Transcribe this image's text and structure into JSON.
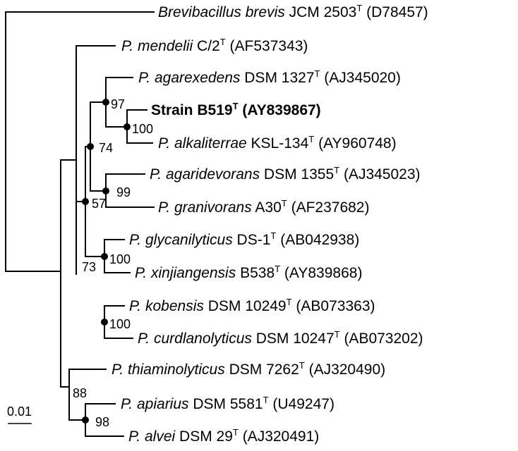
{
  "taxa": [
    {
      "id": "t1",
      "genus": "Brevibacillus",
      "species": "brevis",
      "strain": "JCM 2503",
      "type_mark": "T",
      "accession": "(D78457)",
      "bold": false
    },
    {
      "id": "t2",
      "genus": "P.",
      "species": "mendelii",
      "strain": "C/2",
      "type_mark": "T",
      "accession": "(AF537343)",
      "bold": false
    },
    {
      "id": "t3",
      "genus": "P.",
      "species": "agarexedens",
      "strain": "DSM 1327",
      "type_mark": "T",
      "accession": "(AJ345020)",
      "bold": false
    },
    {
      "id": "t4",
      "genus": "",
      "species": "",
      "strain": "Strain B519",
      "type_mark": "T",
      "accession": "(AY839867)",
      "bold": true
    },
    {
      "id": "t5",
      "genus": "P.",
      "species": "alkaliterrae",
      "strain": "KSL-134",
      "type_mark": "T",
      "accession": "(AY960748)",
      "bold": false
    },
    {
      "id": "t6",
      "genus": "P.",
      "species": "agaridevorans",
      "strain": "DSM 1355",
      "type_mark": "T",
      "accession": "(AJ345023)",
      "bold": false
    },
    {
      "id": "t7",
      "genus": "P.",
      "species": "granivorans",
      "strain": "A30",
      "type_mark": "T",
      "accession": "(AF237682)",
      "bold": false
    },
    {
      "id": "t8",
      "genus": "P.",
      "species": "glycanilyticus",
      "strain": "DS-1",
      "type_mark": "T",
      "accession": "(AB042938)",
      "bold": false
    },
    {
      "id": "t9",
      "genus": "P.",
      "species": "xinjiangensis",
      "strain": "B538",
      "type_mark": "T",
      "accession": "(AY839868)",
      "bold": false
    },
    {
      "id": "t10",
      "genus": "P.",
      "species": "kobensis",
      "strain": "DSM 10249",
      "type_mark": "T",
      "accession": "(AB073363)",
      "bold": false
    },
    {
      "id": "t11",
      "genus": "P.",
      "species": "curdlanolyticus",
      "strain": "DSM 10247",
      "type_mark": "T",
      "accession": "(AB073202)",
      "bold": false
    },
    {
      "id": "t12",
      "genus": "P.",
      "species": "thiaminolyticus",
      "strain": "DSM 7262",
      "type_mark": "T",
      "accession": "(AJ320490)",
      "bold": false
    },
    {
      "id": "t13",
      "genus": "P.",
      "species": "apiarius",
      "strain": "DSM 5581",
      "type_mark": "T",
      "accession": "(U49247)",
      "bold": false
    },
    {
      "id": "t14",
      "genus": "P.",
      "species": "alvei",
      "strain": "DSM 29",
      "type_mark": "T",
      "accession": "(AJ320491)",
      "bold": false
    }
  ],
  "bootstrap": {
    "n97": "97",
    "n100_b519": "100",
    "n74": "74",
    "n99": "99",
    "n57": "57",
    "n100_glyc": "100",
    "n73": "73",
    "n100_kob": "100",
    "n88": "88",
    "n98": "98"
  },
  "scale_bar": {
    "label": "0.01",
    "value": 0.01
  }
}
